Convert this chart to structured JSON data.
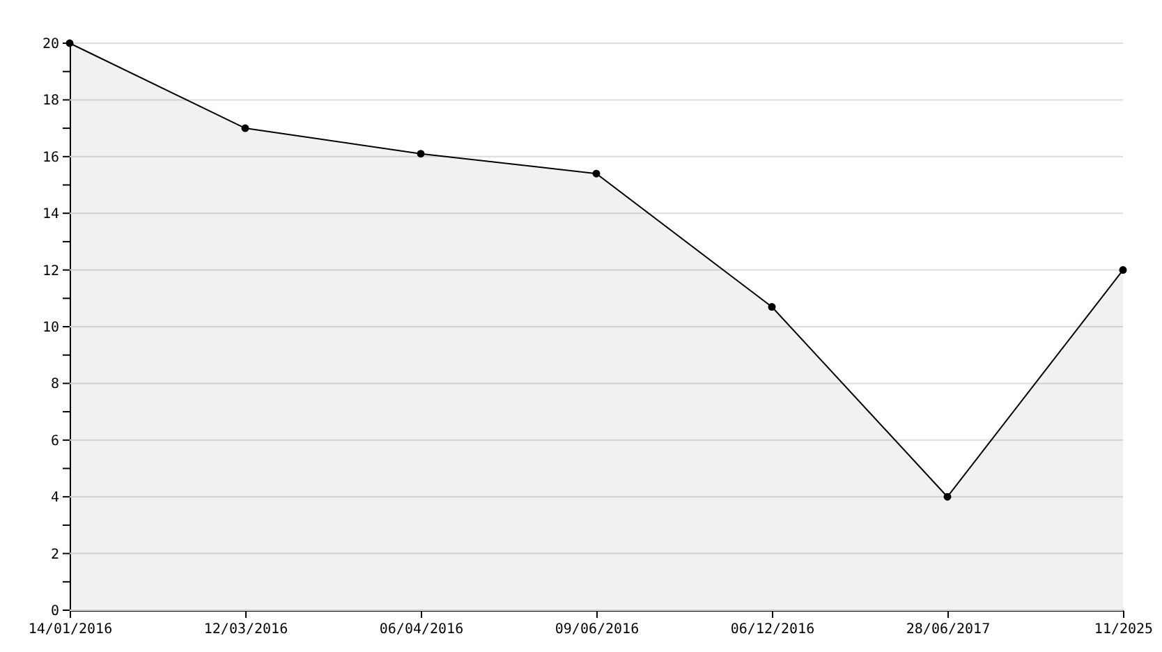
{
  "chart_data": {
    "type": "area",
    "categories": [
      "14/01/2016",
      "12/03/2016",
      "06/04/2016",
      "09/06/2016",
      "06/12/2016",
      "28/06/2017",
      "11/2025"
    ],
    "series": [
      {
        "color": "#000000",
        "values": [
          20,
          17,
          16.1,
          15.4,
          10.7,
          4,
          12
        ]
      }
    ],
    "ylim": [
      0,
      20
    ],
    "yticks": [
      0,
      {
        "value": 1,
        "label": null
      },
      2,
      {
        "value": 3,
        "label": null
      },
      4,
      {
        "value": 5,
        "label": null
      },
      6,
      {
        "value": 7,
        "label": null
      },
      8,
      {
        "value": 9,
        "label": null
      },
      10,
      {
        "value": 11,
        "label": null
      },
      12,
      {
        "value": 13,
        "label": null
      },
      14,
      {
        "value": 15,
        "label": null
      },
      16,
      {
        "value": 17,
        "label": null
      },
      18,
      {
        "value": 19,
        "label": null
      },
      20
    ],
    "grid": "y",
    "marker": "circle",
    "line_style": "solid"
  }
}
